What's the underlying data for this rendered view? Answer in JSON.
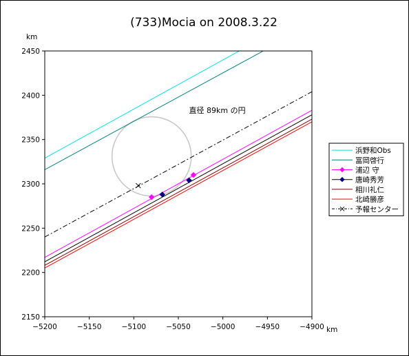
{
  "chart_data": {
    "type": "line",
    "title": "(733)Mocia on 2008.3.22",
    "xunit": "km",
    "yunit": "km",
    "xlim": [
      -5200,
      -4900
    ],
    "ylim": [
      2150,
      2450
    ],
    "xticks": [
      -5200,
      -5150,
      -5100,
      -5050,
      -5000,
      -4950,
      -4900
    ],
    "yticks": [
      2150,
      2200,
      2250,
      2300,
      2350,
      2400,
      2450
    ],
    "xtick_labels": [
      "−5200",
      "−5150",
      "−5100",
      "−5050",
      "−5000",
      "−4950",
      "−4900"
    ],
    "ytick_labels": [
      "2150",
      "2200",
      "2250",
      "2300",
      "2350",
      "2400",
      "2450"
    ],
    "grid": false,
    "legend_position": "right",
    "annotation": {
      "text": "直径 89km の円",
      "x": -5038,
      "y": 2380
    },
    "circle": {
      "center": [
        -5080,
        2331
      ],
      "diameter_km": 89,
      "color": "#c8c8c8"
    },
    "series": [
      {
        "name": "浜野和Obs",
        "color": "#00e0e0",
        "style": "solid",
        "x": [
          -5200,
          -4978
        ],
        "y": [
          2329,
          2452
        ],
        "markers": []
      },
      {
        "name": "冨岡啓行",
        "color": "#008080",
        "style": "solid",
        "x": [
          -5200,
          -4951
        ],
        "y": [
          2316,
          2452
        ],
        "markers": []
      },
      {
        "name": "浦辺 守",
        "color": "#ff00ff",
        "style": "solid",
        "marker": "diamond",
        "marker_color": "#ff00ff",
        "x": [
          -5200,
          -4900
        ],
        "y": [
          2217,
          2383
        ],
        "markers": [
          [
            -5080,
            2285
          ],
          [
            -5033,
            2310
          ]
        ]
      },
      {
        "name": "唐崎秀芳",
        "color": "#000000",
        "style": "solid",
        "marker": "diamond",
        "marker_color": "#000080",
        "x": [
          -5200,
          -4900
        ],
        "y": [
          2212,
          2378
        ],
        "markers": [
          [
            -5068,
            2288
          ],
          [
            -5038,
            2304
          ]
        ]
      },
      {
        "name": "相川礼仁",
        "color": "#800000",
        "style": "solid",
        "x": [
          -5200,
          -4900
        ],
        "y": [
          2208,
          2373
        ],
        "markers": []
      },
      {
        "name": "北崎勝彦",
        "color": "#ff0000",
        "style": "solid",
        "x": [
          -5200,
          -4900
        ],
        "y": [
          2205,
          2370
        ],
        "markers": []
      },
      {
        "name": "予報センター",
        "color": "#000000",
        "style": "dashdot",
        "marker": "x",
        "marker_color": "#000000",
        "x": [
          -5200,
          -4900
        ],
        "y": [
          2240,
          2404
        ],
        "markers": [
          [
            -5095,
            2298
          ]
        ]
      }
    ]
  }
}
